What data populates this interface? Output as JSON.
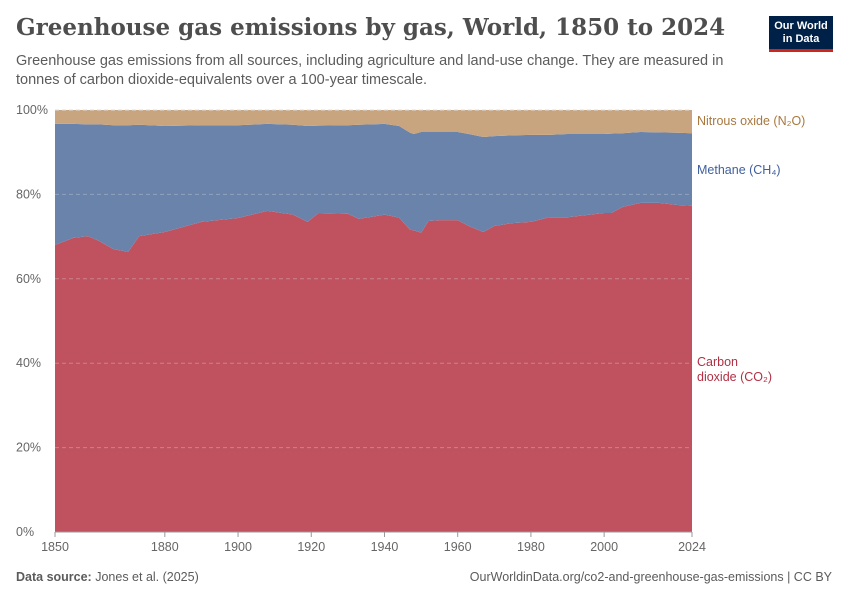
{
  "title": "Greenhouse gas emissions by gas, World, 1850 to 2024",
  "subtitle": "Greenhouse gas emissions from all sources, including agriculture and land-use change. They are measured in tonnes of carbon dioxide-equivalents over a 100-year timescale.",
  "logo": {
    "line1": "Our World",
    "line2": "in Data"
  },
  "footer": {
    "source_label": "Data source:",
    "source": "Jones et al. (2025)",
    "url": "OurWorldinData.org/co2-and-greenhouse-gas-emissions | CC BY"
  },
  "chart_data": {
    "type": "area",
    "stacked": "percent",
    "title": "Greenhouse gas emissions by gas, World, 1850 to 2024",
    "xlim": [
      1850,
      2024
    ],
    "ylim": [
      0,
      100
    ],
    "x_ticks": [
      1850,
      1880,
      1900,
      1920,
      1940,
      1960,
      1980,
      2000,
      2024
    ],
    "y_ticks": [
      "0%",
      "20%",
      "40%",
      "60%",
      "80%",
      "100%"
    ],
    "grid": "horizontal dashed",
    "legend": "right, inline labels",
    "x": [
      1850,
      1855,
      1859,
      1862,
      1866,
      1870,
      1873,
      1880,
      1890,
      1900,
      1908,
      1915,
      1919,
      1922,
      1930,
      1933,
      1940,
      1944,
      1947,
      1948,
      1950,
      1952,
      1955,
      1960,
      1963,
      1967,
      1970,
      1975,
      1980,
      1985,
      1990,
      1995,
      2000,
      2002,
      2005,
      2010,
      2015,
      2020,
      2024
    ],
    "series": [
      {
        "name": "Carbon dioxide (CO₂)",
        "color": "#c05260",
        "values": [
          68.0,
          69.7,
          70.1,
          69.0,
          67.0,
          66.4,
          70.1,
          71.1,
          73.5,
          74.4,
          76.1,
          75.2,
          73.5,
          75.6,
          75.4,
          74.2,
          75.2,
          74.5,
          71.6,
          71.5,
          70.9,
          73.7,
          73.9,
          73.9,
          72.5,
          71.1,
          72.5,
          73.2,
          73.5,
          74.6,
          74.6,
          75.1,
          75.6,
          75.6,
          77.0,
          78.0,
          78.0,
          77.5,
          77.3
        ]
      },
      {
        "name": "Methane (CH₄)",
        "color": "#6a83ab",
        "values": [
          28.7,
          27.0,
          26.5,
          27.6,
          29.4,
          30.0,
          26.4,
          25.1,
          22.9,
          22.0,
          20.6,
          21.3,
          22.7,
          20.7,
          21.0,
          22.3,
          21.5,
          21.7,
          23.0,
          22.8,
          23.9,
          21.1,
          20.9,
          20.9,
          21.8,
          22.5,
          21.3,
          20.8,
          20.6,
          19.5,
          19.7,
          19.2,
          18.7,
          18.8,
          17.5,
          16.8,
          16.7,
          17.1,
          17.2
        ]
      },
      {
        "name": "Nitrous oxide (N₂O)",
        "color": "#c8a57e",
        "values": [
          3.3,
          3.3,
          3.4,
          3.4,
          3.6,
          3.6,
          3.5,
          3.8,
          3.6,
          3.6,
          3.3,
          3.5,
          3.8,
          3.7,
          3.6,
          3.5,
          3.3,
          3.8,
          5.4,
          5.7,
          5.2,
          5.2,
          5.2,
          5.2,
          5.7,
          6.4,
          6.2,
          6.0,
          5.9,
          5.9,
          5.7,
          5.7,
          5.7,
          5.6,
          5.5,
          5.2,
          5.3,
          5.4,
          5.5
        ]
      }
    ]
  }
}
